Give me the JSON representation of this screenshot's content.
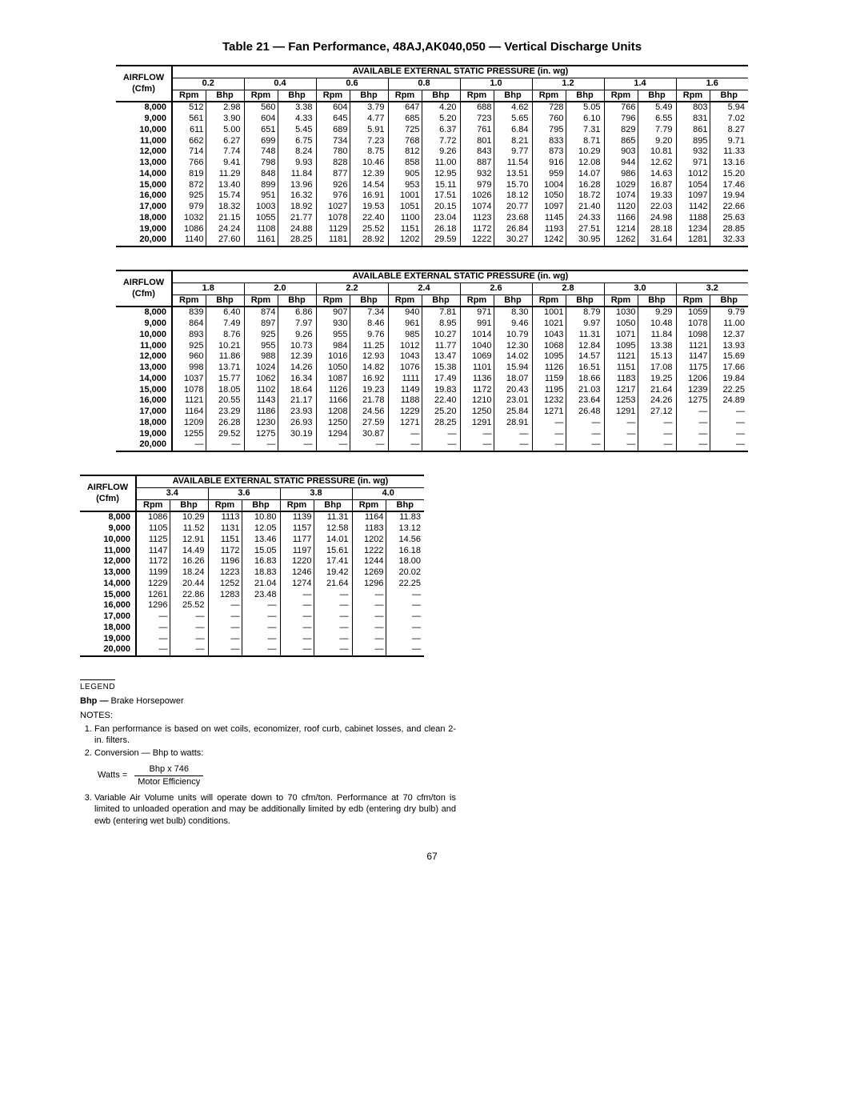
{
  "title": "Table 21 — Fan Performance, 48AJ,AK040,050 — Vertical Discharge Units",
  "pressure_header": "AVAILABLE EXTERNAL STATIC PRESSURE (in. wg)",
  "airflow_label_top": "AIRFLOW",
  "airflow_label_bottom": "(Cfm)",
  "rpm_label": "Rpm",
  "bhp_label": "Bhp",
  "airflows": [
    "8,000",
    "9,000",
    "10,000",
    "11,000",
    "12,000",
    "13,000",
    "14,000",
    "15,000",
    "16,000",
    "17,000",
    "18,000",
    "19,000",
    "20,000"
  ],
  "tables": [
    {
      "pressures": [
        "0.2",
        "0.4",
        "0.6",
        "0.8",
        "1.0",
        "1.2",
        "1.4",
        "1.6"
      ],
      "rows": [
        [
          [
            "512",
            "2.98"
          ],
          [
            "560",
            "3.38"
          ],
          [
            "604",
            "3.79"
          ],
          [
            "647",
            "4.20"
          ],
          [
            "688",
            "4.62"
          ],
          [
            "728",
            "5.05"
          ],
          [
            "766",
            "5.49"
          ],
          [
            "803",
            "5.94"
          ]
        ],
        [
          [
            "561",
            "3.90"
          ],
          [
            "604",
            "4.33"
          ],
          [
            "645",
            "4.77"
          ],
          [
            "685",
            "5.20"
          ],
          [
            "723",
            "5.65"
          ],
          [
            "760",
            "6.10"
          ],
          [
            "796",
            "6.55"
          ],
          [
            "831",
            "7.02"
          ]
        ],
        [
          [
            "611",
            "5.00"
          ],
          [
            "651",
            "5.45"
          ],
          [
            "689",
            "5.91"
          ],
          [
            "725",
            "6.37"
          ],
          [
            "761",
            "6.84"
          ],
          [
            "795",
            "7.31"
          ],
          [
            "829",
            "7.79"
          ],
          [
            "861",
            "8.27"
          ]
        ],
        [
          [
            "662",
            "6.27"
          ],
          [
            "699",
            "6.75"
          ],
          [
            "734",
            "7.23"
          ],
          [
            "768",
            "7.72"
          ],
          [
            "801",
            "8.21"
          ],
          [
            "833",
            "8.71"
          ],
          [
            "865",
            "9.20"
          ],
          [
            "895",
            "9.71"
          ]
        ],
        [
          [
            "714",
            "7.74"
          ],
          [
            "748",
            "8.24"
          ],
          [
            "780",
            "8.75"
          ],
          [
            "812",
            "9.26"
          ],
          [
            "843",
            "9.77"
          ],
          [
            "873",
            "10.29"
          ],
          [
            "903",
            "10.81"
          ],
          [
            "932",
            "11.33"
          ]
        ],
        [
          [
            "766",
            "9.41"
          ],
          [
            "798",
            "9.93"
          ],
          [
            "828",
            "10.46"
          ],
          [
            "858",
            "11.00"
          ],
          [
            "887",
            "11.54"
          ],
          [
            "916",
            "12.08"
          ],
          [
            "944",
            "12.62"
          ],
          [
            "971",
            "13.16"
          ]
        ],
        [
          [
            "819",
            "11.29"
          ],
          [
            "848",
            "11.84"
          ],
          [
            "877",
            "12.39"
          ],
          [
            "905",
            "12.95"
          ],
          [
            "932",
            "13.51"
          ],
          [
            "959",
            "14.07"
          ],
          [
            "986",
            "14.63"
          ],
          [
            "1012",
            "15.20"
          ]
        ],
        [
          [
            "872",
            "13.40"
          ],
          [
            "899",
            "13.96"
          ],
          [
            "926",
            "14.54"
          ],
          [
            "953",
            "15.11"
          ],
          [
            "979",
            "15.70"
          ],
          [
            "1004",
            "16.28"
          ],
          [
            "1029",
            "16.87"
          ],
          [
            "1054",
            "17.46"
          ]
        ],
        [
          [
            "925",
            "15.74"
          ],
          [
            "951",
            "16.32"
          ],
          [
            "976",
            "16.91"
          ],
          [
            "1001",
            "17.51"
          ],
          [
            "1026",
            "18.12"
          ],
          [
            "1050",
            "18.72"
          ],
          [
            "1074",
            "19.33"
          ],
          [
            "1097",
            "19.94"
          ]
        ],
        [
          [
            "979",
            "18.32"
          ],
          [
            "1003",
            "18.92"
          ],
          [
            "1027",
            "19.53"
          ],
          [
            "1051",
            "20.15"
          ],
          [
            "1074",
            "20.77"
          ],
          [
            "1097",
            "21.40"
          ],
          [
            "1120",
            "22.03"
          ],
          [
            "1142",
            "22.66"
          ]
        ],
        [
          [
            "1032",
            "21.15"
          ],
          [
            "1055",
            "21.77"
          ],
          [
            "1078",
            "22.40"
          ],
          [
            "1100",
            "23.04"
          ],
          [
            "1123",
            "23.68"
          ],
          [
            "1145",
            "24.33"
          ],
          [
            "1166",
            "24.98"
          ],
          [
            "1188",
            "25.63"
          ]
        ],
        [
          [
            "1086",
            "24.24"
          ],
          [
            "1108",
            "24.88"
          ],
          [
            "1129",
            "25.52"
          ],
          [
            "1151",
            "26.18"
          ],
          [
            "1172",
            "26.84"
          ],
          [
            "1193",
            "27.51"
          ],
          [
            "1214",
            "28.18"
          ],
          [
            "1234",
            "28.85"
          ]
        ],
        [
          [
            "1140",
            "27.60"
          ],
          [
            "1161",
            "28.25"
          ],
          [
            "1181",
            "28.92"
          ],
          [
            "1202",
            "29.59"
          ],
          [
            "1222",
            "30.27"
          ],
          [
            "1242",
            "30.95"
          ],
          [
            "1262",
            "31.64"
          ],
          [
            "1281",
            "32.33"
          ]
        ]
      ]
    },
    {
      "pressures": [
        "1.8",
        "2.0",
        "2.2",
        "2.4",
        "2.6",
        "2.8",
        "3.0",
        "3.2"
      ],
      "rows": [
        [
          [
            "839",
            "6.40"
          ],
          [
            "874",
            "6.86"
          ],
          [
            "907",
            "7.34"
          ],
          [
            "940",
            "7.81"
          ],
          [
            "971",
            "8.30"
          ],
          [
            "1001",
            "8.79"
          ],
          [
            "1030",
            "9.29"
          ],
          [
            "1059",
            "9.79"
          ]
        ],
        [
          [
            "864",
            "7.49"
          ],
          [
            "897",
            "7.97"
          ],
          [
            "930",
            "8.46"
          ],
          [
            "961",
            "8.95"
          ],
          [
            "991",
            "9.46"
          ],
          [
            "1021",
            "9.97"
          ],
          [
            "1050",
            "10.48"
          ],
          [
            "1078",
            "11.00"
          ]
        ],
        [
          [
            "893",
            "8.76"
          ],
          [
            "925",
            "9.26"
          ],
          [
            "955",
            "9.76"
          ],
          [
            "985",
            "10.27"
          ],
          [
            "1014",
            "10.79"
          ],
          [
            "1043",
            "11.31"
          ],
          [
            "1071",
            "11.84"
          ],
          [
            "1098",
            "12.37"
          ]
        ],
        [
          [
            "925",
            "10.21"
          ],
          [
            "955",
            "10.73"
          ],
          [
            "984",
            "11.25"
          ],
          [
            "1012",
            "11.77"
          ],
          [
            "1040",
            "12.30"
          ],
          [
            "1068",
            "12.84"
          ],
          [
            "1095",
            "13.38"
          ],
          [
            "1121",
            "13.93"
          ]
        ],
        [
          [
            "960",
            "11.86"
          ],
          [
            "988",
            "12.39"
          ],
          [
            "1016",
            "12.93"
          ],
          [
            "1043",
            "13.47"
          ],
          [
            "1069",
            "14.02"
          ],
          [
            "1095",
            "14.57"
          ],
          [
            "1121",
            "15.13"
          ],
          [
            "1147",
            "15.69"
          ]
        ],
        [
          [
            "998",
            "13.71"
          ],
          [
            "1024",
            "14.26"
          ],
          [
            "1050",
            "14.82"
          ],
          [
            "1076",
            "15.38"
          ],
          [
            "1101",
            "15.94"
          ],
          [
            "1126",
            "16.51"
          ],
          [
            "1151",
            "17.08"
          ],
          [
            "1175",
            "17.66"
          ]
        ],
        [
          [
            "1037",
            "15.77"
          ],
          [
            "1062",
            "16.34"
          ],
          [
            "1087",
            "16.92"
          ],
          [
            "1111",
            "17.49"
          ],
          [
            "1136",
            "18.07"
          ],
          [
            "1159",
            "18.66"
          ],
          [
            "1183",
            "19.25"
          ],
          [
            "1206",
            "19.84"
          ]
        ],
        [
          [
            "1078",
            "18.05"
          ],
          [
            "1102",
            "18.64"
          ],
          [
            "1126",
            "19.23"
          ],
          [
            "1149",
            "19.83"
          ],
          [
            "1172",
            "20.43"
          ],
          [
            "1195",
            "21.03"
          ],
          [
            "1217",
            "21.64"
          ],
          [
            "1239",
            "22.25"
          ]
        ],
        [
          [
            "1121",
            "20.55"
          ],
          [
            "1143",
            "21.17"
          ],
          [
            "1166",
            "21.78"
          ],
          [
            "1188",
            "22.40"
          ],
          [
            "1210",
            "23.01"
          ],
          [
            "1232",
            "23.64"
          ],
          [
            "1253",
            "24.26"
          ],
          [
            "1275",
            "24.89"
          ]
        ],
        [
          [
            "1164",
            "23.29"
          ],
          [
            "1186",
            "23.93"
          ],
          [
            "1208",
            "24.56"
          ],
          [
            "1229",
            "25.20"
          ],
          [
            "1250",
            "25.84"
          ],
          [
            "1271",
            "26.48"
          ],
          [
            "1291",
            "27.12"
          ],
          [
            "—",
            "—"
          ]
        ],
        [
          [
            "1209",
            "26.28"
          ],
          [
            "1230",
            "26.93"
          ],
          [
            "1250",
            "27.59"
          ],
          [
            "1271",
            "28.25"
          ],
          [
            "1291",
            "28.91"
          ],
          [
            "—",
            "—"
          ],
          [
            "—",
            "—"
          ],
          [
            "—",
            "—"
          ]
        ],
        [
          [
            "1255",
            "29.52"
          ],
          [
            "1275",
            "30.19"
          ],
          [
            "1294",
            "30.87"
          ],
          [
            "—",
            "—"
          ],
          [
            "—",
            "—"
          ],
          [
            "—",
            "—"
          ],
          [
            "—",
            "—"
          ],
          [
            "—",
            "—"
          ]
        ],
        [
          [
            "—",
            "—"
          ],
          [
            "—",
            "—"
          ],
          [
            "—",
            "—"
          ],
          [
            "—",
            "—"
          ],
          [
            "—",
            "—"
          ],
          [
            "—",
            "—"
          ],
          [
            "—",
            "—"
          ],
          [
            "—",
            "—"
          ]
        ]
      ]
    },
    {
      "pressures": [
        "3.4",
        "3.6",
        "3.8",
        "4.0"
      ],
      "rows": [
        [
          [
            "1086",
            "10.29"
          ],
          [
            "1113",
            "10.80"
          ],
          [
            "1139",
            "11.31"
          ],
          [
            "1164",
            "11.83"
          ]
        ],
        [
          [
            "1105",
            "11.52"
          ],
          [
            "1131",
            "12.05"
          ],
          [
            "1157",
            "12.58"
          ],
          [
            "1183",
            "13.12"
          ]
        ],
        [
          [
            "1125",
            "12.91"
          ],
          [
            "1151",
            "13.46"
          ],
          [
            "1177",
            "14.01"
          ],
          [
            "1202",
            "14.56"
          ]
        ],
        [
          [
            "1147",
            "14.49"
          ],
          [
            "1172",
            "15.05"
          ],
          [
            "1197",
            "15.61"
          ],
          [
            "1222",
            "16.18"
          ]
        ],
        [
          [
            "1172",
            "16.26"
          ],
          [
            "1196",
            "16.83"
          ],
          [
            "1220",
            "17.41"
          ],
          [
            "1244",
            "18.00"
          ]
        ],
        [
          [
            "1199",
            "18.24"
          ],
          [
            "1223",
            "18.83"
          ],
          [
            "1246",
            "19.42"
          ],
          [
            "1269",
            "20.02"
          ]
        ],
        [
          [
            "1229",
            "20.44"
          ],
          [
            "1252",
            "21.04"
          ],
          [
            "1274",
            "21.64"
          ],
          [
            "1296",
            "22.25"
          ]
        ],
        [
          [
            "1261",
            "22.86"
          ],
          [
            "1283",
            "23.48"
          ],
          [
            "—",
            "—"
          ],
          [
            "—",
            "—"
          ]
        ],
        [
          [
            "1296",
            "25.52"
          ],
          [
            "—",
            "—"
          ],
          [
            "—",
            "—"
          ],
          [
            "—",
            "—"
          ]
        ],
        [
          [
            "—",
            "—"
          ],
          [
            "—",
            "—"
          ],
          [
            "—",
            "—"
          ],
          [
            "—",
            "—"
          ]
        ],
        [
          [
            "—",
            "—"
          ],
          [
            "—",
            "—"
          ],
          [
            "—",
            "—"
          ],
          [
            "—",
            "—"
          ]
        ],
        [
          [
            "—",
            "—"
          ],
          [
            "—",
            "—"
          ],
          [
            "—",
            "—"
          ],
          [
            "—",
            "—"
          ]
        ],
        [
          [
            "—",
            "—"
          ],
          [
            "—",
            "—"
          ],
          [
            "—",
            "—"
          ],
          [
            "—",
            "—"
          ]
        ]
      ]
    }
  ],
  "legend": {
    "label": "LEGEND",
    "bhp_def_bold": "Bhp —",
    "bhp_def_rest": " Brake Horsepower",
    "notes_label": "NOTES:",
    "note1": "Fan performance is based on wet coils, economizer, roof curb, cabinet losses, and clean 2-in. filters.",
    "note2": "Conversion — Bhp to watts:",
    "watts_eq": "Watts =",
    "frac_num": "Bhp x 746",
    "frac_den": "Motor Efficiency",
    "note3": "Variable Air Volume units will operate down to 70 cfm/ton. Performance at 70 cfm/ton is limited to unloaded operation and may be additionally limited by edb (entering dry bulb) and ewb (entering wet bulb) conditions."
  },
  "page_number": "67",
  "col_widths": {
    "airflow": 70,
    "rpm": 42,
    "bhp": 48
  }
}
